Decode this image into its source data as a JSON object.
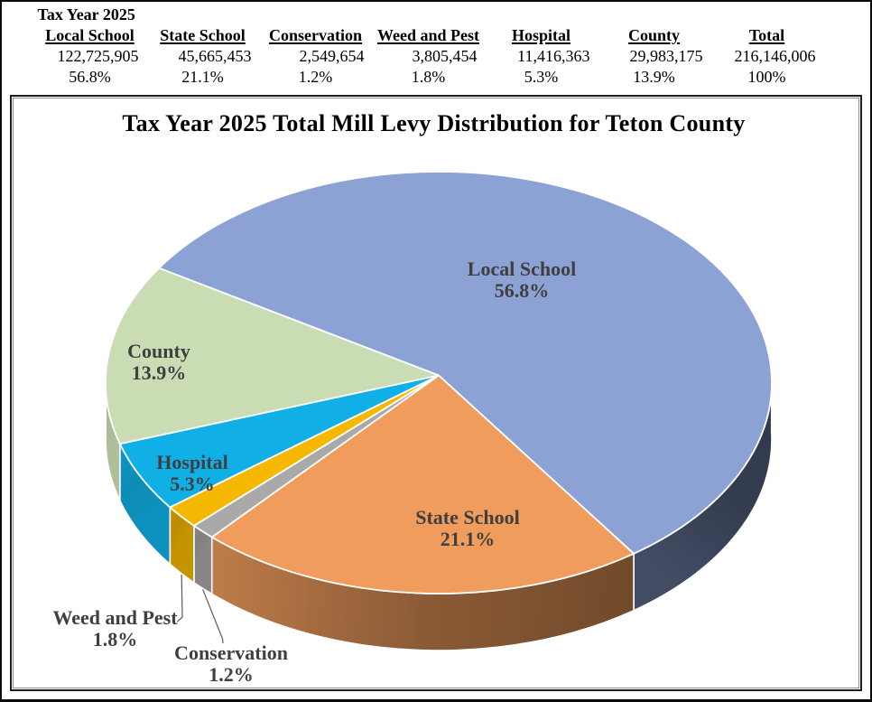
{
  "table": {
    "title": "Tax Year 2025",
    "columns": [
      {
        "label": "Local School",
        "value": "122,725,905",
        "pct": "56.8%"
      },
      {
        "label": "State School",
        "value": "45,665,453",
        "pct": "21.1%"
      },
      {
        "label": "Conservation",
        "value": "2,549,654",
        "pct": "1.2%"
      },
      {
        "label": "Weed and Pest",
        "value": "3,805,454",
        "pct": "1.8%"
      },
      {
        "label": "Hospital",
        "value": "11,416,363",
        "pct": "5.3%"
      },
      {
        "label": "County",
        "value": "29,983,175",
        "pct": "13.9%"
      },
      {
        "label": "Total",
        "value": "216,146,006",
        "pct": "100%"
      }
    ]
  },
  "chart_data": {
    "type": "pie",
    "style": "3d",
    "title": "Tax Year 2025 Total Mill Levy Distribution for Teton County",
    "categories": [
      "Local School",
      "State School",
      "Conservation",
      "Weed and Pest",
      "Hospital",
      "County"
    ],
    "values": [
      122725905,
      45665453,
      2549654,
      3805454,
      11416363,
      29983175
    ],
    "percent_labels": [
      "56.8%",
      "21.1%",
      "1.2%",
      "1.8%",
      "5.3%",
      "13.9%"
    ],
    "total": 216146006,
    "colors": [
      "#8CA2D4",
      "#F09C5C",
      "#A9A9A9",
      "#F5B700",
      "#10B0E6",
      "#CADCB4"
    ],
    "start_angle_deg": -59,
    "label_color": "#3F3F3F",
    "slice_border_color": "#FFFFFF",
    "leader_line_color": "#5a5a5a",
    "legend": "none"
  }
}
